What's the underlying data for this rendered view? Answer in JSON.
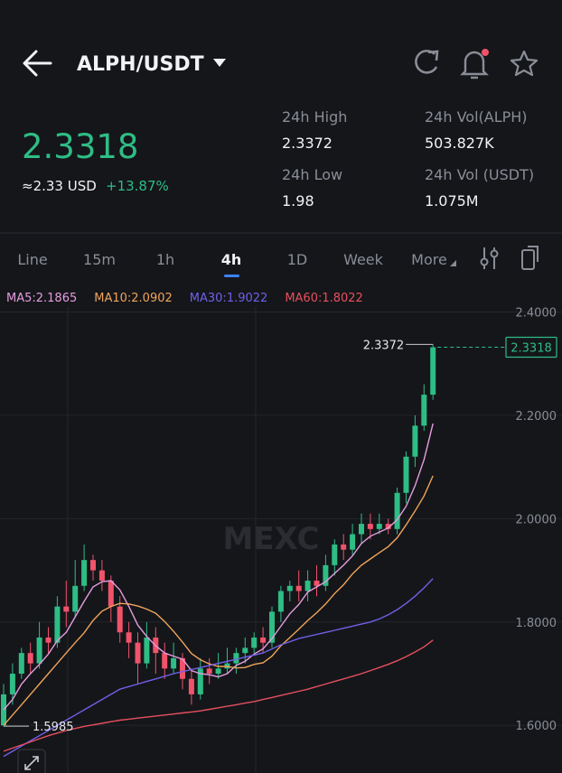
{
  "header": {
    "pair": "ALPH/USDT"
  },
  "ticker": {
    "price": "2.3318",
    "usd": "≈2.33 USD",
    "change": "+13.87%"
  },
  "stats": [
    {
      "label": "24h High",
      "value": "2.3372"
    },
    {
      "label": "24h Vol(ALPH)",
      "value": "503.827K"
    },
    {
      "label": "24h Low",
      "value": "1.98"
    },
    {
      "label": "24h Vol (USDT)",
      "value": "1.075M"
    }
  ],
  "tabs": [
    "Line",
    "15m",
    "1h",
    "4h",
    "1D",
    "Week",
    "More"
  ],
  "chart_data": {
    "type": "candlestick",
    "watermark": "MEXC",
    "up_color": "#2ebd85",
    "down_color": "#f0536a",
    "ylim": [
      1.5515,
      2.4096
    ],
    "yticks": [
      {
        "value": 2.4,
        "label": "2.4000"
      },
      {
        "value": 2.2,
        "label": "2.2000"
      },
      {
        "value": 2.0,
        "label": "2.0000"
      },
      {
        "value": 1.8,
        "label": "1.8000"
      },
      {
        "value": 1.6,
        "label": "1.6000"
      }
    ],
    "grid": true,
    "open": [
      1.6,
      1.66,
      1.7,
      1.74,
      1.72,
      1.77,
      1.76,
      1.83,
      1.82,
      1.87,
      1.92,
      1.9,
      1.88,
      1.83,
      1.78,
      1.76,
      1.72,
      1.77,
      1.74,
      1.71,
      1.73,
      1.69,
      1.66,
      1.71,
      1.7,
      1.71,
      1.72,
      1.74,
      1.75,
      1.77,
      1.76,
      1.82,
      1.86,
      1.87,
      1.86,
      1.88,
      1.87,
      1.91,
      1.95,
      1.94,
      1.97,
      1.99,
      1.98,
      1.99,
      1.98,
      2.05,
      2.12,
      2.18,
      2.24
    ],
    "high": [
      1.68,
      1.72,
      1.75,
      1.76,
      1.8,
      1.79,
      1.85,
      1.88,
      1.92,
      1.95,
      1.93,
      1.92,
      1.89,
      1.85,
      1.8,
      1.78,
      1.8,
      1.79,
      1.76,
      1.76,
      1.74,
      1.71,
      1.73,
      1.73,
      1.74,
      1.75,
      1.75,
      1.77,
      1.78,
      1.79,
      1.83,
      1.87,
      1.88,
      1.9,
      1.9,
      1.91,
      1.93,
      1.96,
      1.97,
      1.99,
      2.01,
      2.01,
      2.01,
      2.0,
      2.06,
      2.13,
      2.2,
      2.26,
      2.3372
    ],
    "low": [
      1.5985,
      1.64,
      1.69,
      1.7,
      1.71,
      1.74,
      1.75,
      1.79,
      1.81,
      1.86,
      1.88,
      1.86,
      1.8,
      1.76,
      1.73,
      1.68,
      1.71,
      1.7,
      1.69,
      1.7,
      1.67,
      1.64,
      1.65,
      1.68,
      1.69,
      1.7,
      1.7,
      1.72,
      1.74,
      1.74,
      1.75,
      1.8,
      1.84,
      1.84,
      1.84,
      1.85,
      1.86,
      1.89,
      1.92,
      1.93,
      1.95,
      1.96,
      1.97,
      1.97,
      1.97,
      2.03,
      2.1,
      2.17,
      2.23
    ],
    "close": [
      1.66,
      1.7,
      1.74,
      1.72,
      1.77,
      1.76,
      1.83,
      1.82,
      1.87,
      1.92,
      1.9,
      1.88,
      1.83,
      1.78,
      1.76,
      1.72,
      1.77,
      1.74,
      1.71,
      1.73,
      1.69,
      1.66,
      1.71,
      1.7,
      1.71,
      1.72,
      1.74,
      1.75,
      1.77,
      1.76,
      1.82,
      1.86,
      1.87,
      1.86,
      1.88,
      1.87,
      1.91,
      1.95,
      1.94,
      1.97,
      1.99,
      1.98,
      1.99,
      1.98,
      2.05,
      2.12,
      2.18,
      2.24,
      2.3318
    ],
    "series": [
      {
        "name": "MA5:2.1865",
        "color": "#e59de0",
        "values": [
          1.63,
          1.65,
          1.68,
          1.7,
          1.718,
          1.738,
          1.764,
          1.78,
          1.81,
          1.84,
          1.868,
          1.878,
          1.88,
          1.862,
          1.83,
          1.794,
          1.772,
          1.754,
          1.74,
          1.734,
          1.728,
          1.706,
          1.7,
          1.698,
          1.694,
          1.7,
          1.716,
          1.724,
          1.738,
          1.748,
          1.768,
          1.792,
          1.816,
          1.834,
          1.858,
          1.868,
          1.878,
          1.894,
          1.91,
          1.928,
          1.952,
          1.966,
          1.974,
          1.982,
          1.998,
          2.024,
          2.064,
          2.114,
          2.184
        ]
      },
      {
        "name": "MA10:2.0902",
        "color": "#f0a45a",
        "values": [
          1.6,
          1.62,
          1.64,
          1.66,
          1.68,
          1.7,
          1.72,
          1.74,
          1.76,
          1.779,
          1.803,
          1.821,
          1.83,
          1.836,
          1.835,
          1.831,
          1.825,
          1.817,
          1.801,
          1.782,
          1.761,
          1.739,
          1.727,
          1.719,
          1.714,
          1.714,
          1.711,
          1.712,
          1.718,
          1.721,
          1.734,
          1.754,
          1.77,
          1.786,
          1.803,
          1.818,
          1.835,
          1.855,
          1.872,
          1.893,
          1.91,
          1.922,
          1.934,
          1.946,
          1.963,
          1.988,
          2.015,
          2.044,
          2.083
        ]
      },
      {
        "name": "MA30:1.9022",
        "color": "#7060e8",
        "values": [
          1.54,
          1.55,
          1.56,
          1.57,
          1.58,
          1.59,
          1.6,
          1.61,
          1.62,
          1.63,
          1.64,
          1.65,
          1.66,
          1.67,
          1.675,
          1.68,
          1.685,
          1.69,
          1.695,
          1.7,
          1.704,
          1.708,
          1.712,
          1.716,
          1.72,
          1.724,
          1.728,
          1.732,
          1.736,
          1.74,
          1.748,
          1.756,
          1.762,
          1.768,
          1.772,
          1.776,
          1.78,
          1.784,
          1.788,
          1.792,
          1.796,
          1.8,
          1.806,
          1.814,
          1.824,
          1.836,
          1.85,
          1.866,
          1.884
        ]
      },
      {
        "name": "MA60:1.8022",
        "color": "#e5505e",
        "values": [
          1.55,
          1.556,
          1.562,
          1.568,
          1.574,
          1.58,
          1.585,
          1.59,
          1.594,
          1.598,
          1.601,
          1.604,
          1.607,
          1.61,
          1.612,
          1.614,
          1.616,
          1.618,
          1.62,
          1.622,
          1.624,
          1.626,
          1.628,
          1.631,
          1.634,
          1.637,
          1.64,
          1.643,
          1.646,
          1.65,
          1.654,
          1.658,
          1.662,
          1.666,
          1.67,
          1.675,
          1.68,
          1.685,
          1.69,
          1.695,
          1.7,
          1.706,
          1.712,
          1.718,
          1.725,
          1.733,
          1.742,
          1.752,
          1.765
        ]
      }
    ]
  }
}
